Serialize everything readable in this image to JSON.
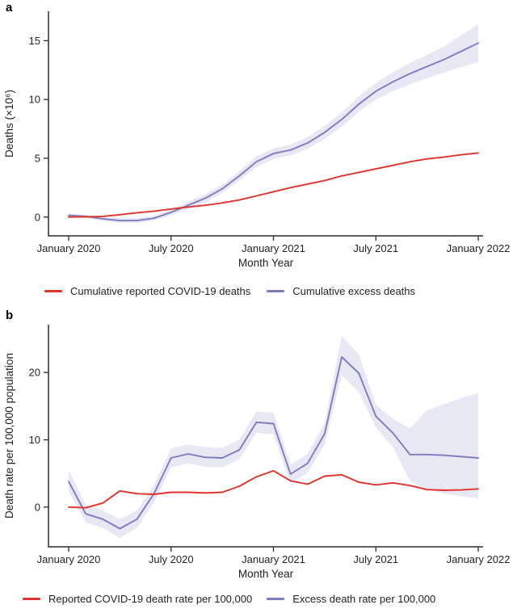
{
  "figure": {
    "panel_a_label": "a",
    "panel_b_label": "b",
    "background": "#ffffff",
    "text_color": "#231f20",
    "axis_color": "#2b2b2b"
  },
  "chart_data": [
    {
      "type": "line",
      "panel": "a",
      "title": "",
      "xlabel": "Month Year",
      "ylabel": "Deaths (×10⁶)",
      "x_tick_labels": [
        "January 2020",
        "July 2020",
        "January 2021",
        "July 2021",
        "January 2022"
      ],
      "x_tick_month_index": [
        0,
        6,
        12,
        18,
        24
      ],
      "months": [
        "2020-01",
        "2020-02",
        "2020-03",
        "2020-04",
        "2020-05",
        "2020-06",
        "2020-07",
        "2020-08",
        "2020-09",
        "2020-10",
        "2020-11",
        "2020-12",
        "2021-01",
        "2021-02",
        "2021-03",
        "2021-04",
        "2021-05",
        "2021-06",
        "2021-07",
        "2021-08",
        "2021-09",
        "2021-10",
        "2021-11",
        "2021-12",
        "2022-01"
      ],
      "y_ticks": [
        0,
        5,
        10,
        15
      ],
      "ylim": [
        -1.6,
        17.5
      ],
      "grid": false,
      "legend_position": "bottom",
      "series": [
        {
          "key": "excess",
          "name": "Cumulative excess deaths",
          "color": "#7e7cc0",
          "band_color": "#7e7cc0",
          "band_opacity": 0.18,
          "values": [
            0.15,
            0.05,
            -0.15,
            -0.3,
            -0.3,
            -0.1,
            0.4,
            1.0,
            1.6,
            2.4,
            3.5,
            4.7,
            5.4,
            5.7,
            6.3,
            7.2,
            8.3,
            9.6,
            10.7,
            11.5,
            12.2,
            12.8,
            13.4,
            14.1,
            14.8
          ],
          "band_lower": [
            0.0,
            -0.1,
            -0.3,
            -0.5,
            -0.5,
            -0.3,
            0.15,
            0.7,
            1.25,
            2.05,
            3.1,
            4.25,
            4.95,
            5.25,
            5.8,
            6.65,
            7.7,
            8.95,
            10.0,
            10.7,
            11.3,
            11.8,
            12.3,
            12.75,
            13.2
          ],
          "band_upper": [
            0.3,
            0.2,
            0.0,
            -0.1,
            -0.1,
            0.1,
            0.65,
            1.3,
            1.95,
            2.75,
            3.9,
            5.15,
            5.85,
            6.15,
            6.8,
            7.75,
            8.9,
            10.25,
            11.4,
            12.3,
            13.1,
            13.8,
            14.5,
            15.45,
            16.4
          ]
        },
        {
          "key": "reported",
          "name": "Cumulative reported COVID-19 deaths",
          "color": "#e0332c",
          "values": [
            0.0,
            0.02,
            0.05,
            0.2,
            0.36,
            0.5,
            0.68,
            0.85,
            1.0,
            1.2,
            1.45,
            1.8,
            2.15,
            2.5,
            2.8,
            3.1,
            3.5,
            3.8,
            4.1,
            4.4,
            4.7,
            4.95,
            5.1,
            5.3,
            5.45
          ]
        }
      ]
    },
    {
      "type": "line",
      "panel": "b",
      "title": "",
      "xlabel": "Month Year",
      "ylabel": "Death rate per 100,000 population",
      "x_tick_labels": [
        "January 2020",
        "July 2020",
        "January 2021",
        "July 2021",
        "January 2022"
      ],
      "x_tick_month_index": [
        0,
        6,
        12,
        18,
        24
      ],
      "months": [
        "2020-01",
        "2020-02",
        "2020-03",
        "2020-04",
        "2020-05",
        "2020-06",
        "2020-07",
        "2020-08",
        "2020-09",
        "2020-10",
        "2020-11",
        "2020-12",
        "2021-01",
        "2021-02",
        "2021-03",
        "2021-04",
        "2021-05",
        "2021-06",
        "2021-07",
        "2021-08",
        "2021-09",
        "2021-10",
        "2021-11",
        "2021-12",
        "2022-01"
      ],
      "y_ticks": [
        0,
        10,
        20
      ],
      "ylim": [
        -5.9,
        27.1
      ],
      "grid": false,
      "legend_position": "bottom",
      "series": [
        {
          "key": "excess",
          "name": "Excess death rate per 100,000",
          "color": "#7e7cc0",
          "band_color": "#7e7cc0",
          "band_opacity": 0.18,
          "values": [
            3.8,
            -1.0,
            -1.8,
            -3.2,
            -1.8,
            2.0,
            7.3,
            7.9,
            7.4,
            7.3,
            8.5,
            12.6,
            12.4,
            4.9,
            6.5,
            10.9,
            22.3,
            19.9,
            13.5,
            11.0,
            7.8,
            7.8,
            7.7,
            7.5,
            7.3
          ],
          "band_lower": [
            2.3,
            -2.3,
            -3.1,
            -4.6,
            -3.1,
            0.7,
            5.9,
            6.5,
            6.0,
            5.9,
            7.1,
            11.0,
            10.8,
            3.5,
            5.1,
            9.3,
            19.6,
            17.1,
            11.8,
            8.9,
            3.9,
            2.6,
            2.0,
            1.6,
            1.3
          ],
          "band_upper": [
            5.5,
            0.3,
            -0.5,
            -1.8,
            -0.5,
            3.3,
            8.7,
            9.3,
            8.9,
            8.8,
            10.0,
            14.2,
            14.0,
            6.3,
            7.9,
            12.5,
            25.4,
            22.7,
            15.2,
            13.1,
            11.7,
            14.4,
            15.3,
            16.2,
            16.9
          ]
        },
        {
          "key": "reported",
          "name": "Reported COVID-19 death rate per 100,000",
          "color": "#e0332c",
          "values": [
            0.0,
            -0.1,
            0.6,
            2.4,
            2.0,
            1.9,
            2.2,
            2.2,
            2.1,
            2.2,
            3.1,
            4.5,
            5.4,
            3.9,
            3.4,
            4.6,
            4.8,
            3.7,
            3.3,
            3.6,
            3.2,
            2.6,
            2.5,
            2.55,
            2.7
          ]
        }
      ]
    }
  ]
}
